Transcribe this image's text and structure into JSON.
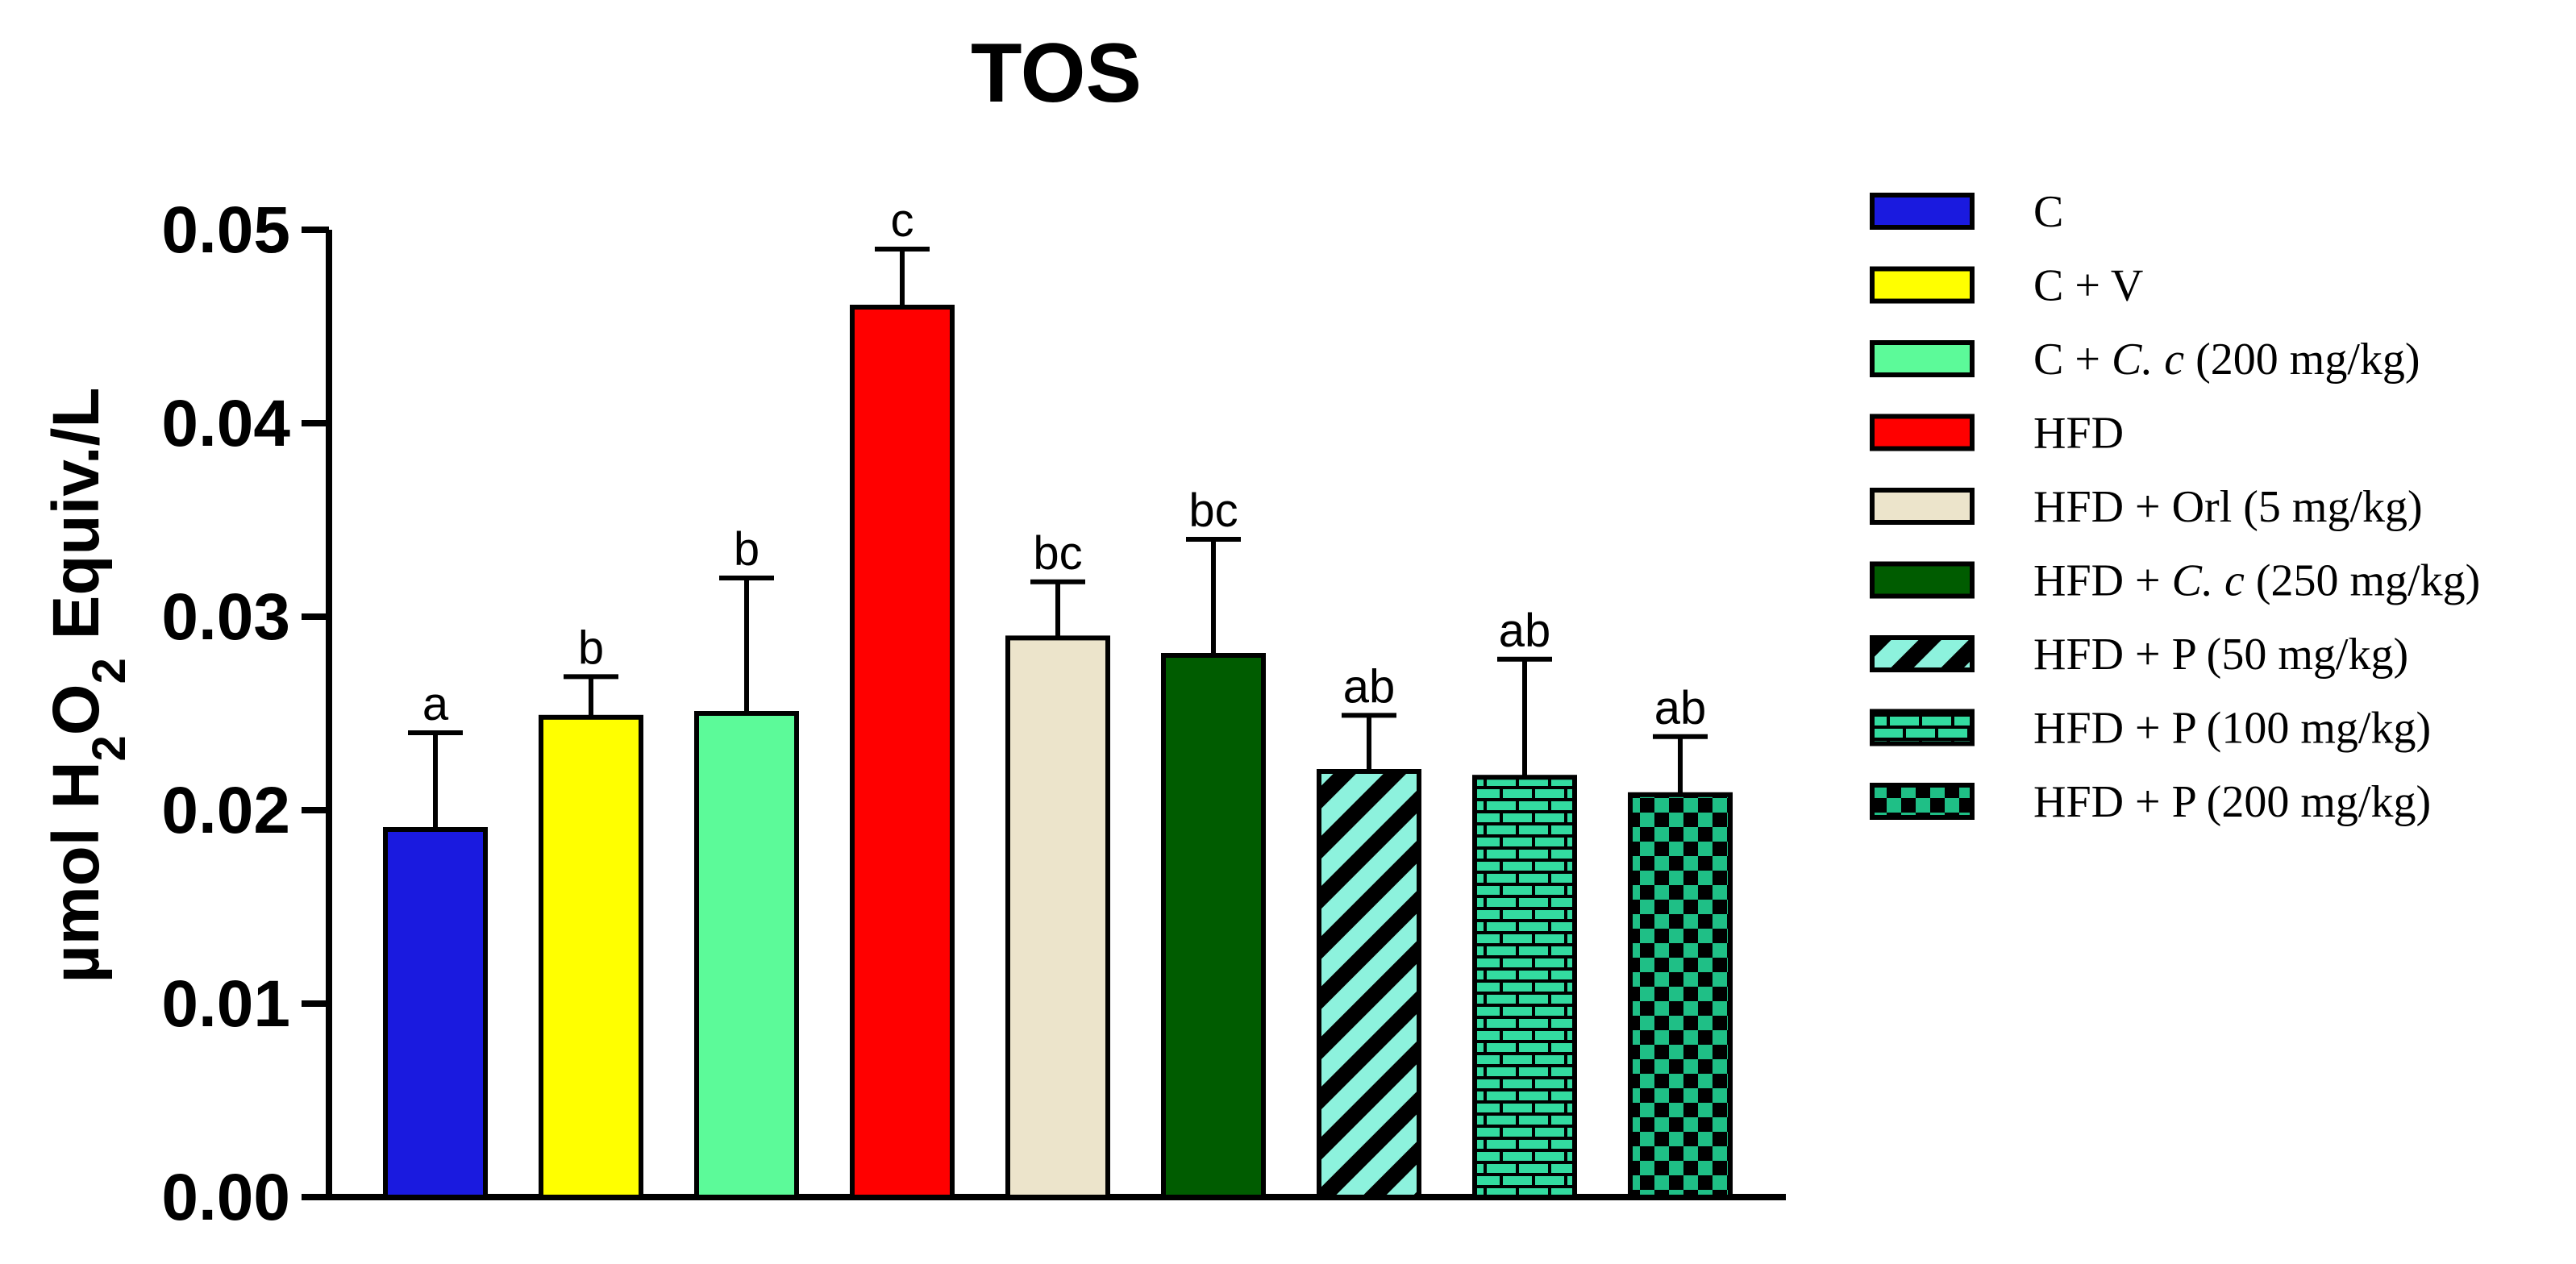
{
  "chart_data": {
    "type": "bar",
    "title": "TOS",
    "xlabel": "",
    "ylabel": {
      "prefix": "µmol H",
      "sub1": "2",
      "mid": "O",
      "sub2": "2",
      "suffix": " Equiv./L"
    },
    "ylim": [
      0,
      0.05
    ],
    "yticks": [
      "0.00",
      "0.01",
      "0.02",
      "0.03",
      "0.04",
      "0.05"
    ],
    "categories": [
      "C",
      "C + V",
      "C + C. c (200 mg/kg)",
      "HFD",
      "HFD + Orl (5 mg/kg)",
      "HFD + C. c (250 mg/kg)",
      "HFD + P (50 mg/kg)",
      "HFD + P (100 mg/kg)",
      "HFD + P (200 mg/kg)"
    ],
    "values": [
      0.019,
      0.0248,
      0.025,
      0.046,
      0.0289,
      0.028,
      0.022,
      0.0217,
      0.0208
    ],
    "errors": [
      0.005,
      0.0021,
      0.007,
      0.003,
      0.0029,
      0.006,
      0.0029,
      0.0061,
      0.003
    ],
    "significance": [
      "a",
      "b",
      "b",
      "c",
      "bc",
      "bc",
      "ab",
      "ab",
      "ab"
    ],
    "colors": [
      "#1a1adf",
      "#ffff00",
      "#5cfa99",
      "#ff0000",
      "#ece4cb",
      "#005c00",
      "#8df2dd",
      "#33dba0",
      "#1fbf86"
    ],
    "patterns": [
      "solid",
      "solid",
      "solid",
      "solid",
      "solid",
      "solid",
      "stripes",
      "bricks",
      "checker"
    ],
    "legend": {
      "position": "right",
      "items": [
        {
          "parts": [
            {
              "t": "C",
              "i": false
            }
          ]
        },
        {
          "parts": [
            {
              "t": "C + V",
              "i": false
            }
          ]
        },
        {
          "parts": [
            {
              "t": "C + ",
              "i": false
            },
            {
              "t": "C. c",
              "i": true
            },
            {
              "t": " (200 mg/kg)",
              "i": false
            }
          ]
        },
        {
          "parts": [
            {
              "t": "HFD",
              "i": false
            }
          ]
        },
        {
          "parts": [
            {
              "t": "HFD + Orl (5 mg/kg)",
              "i": false
            }
          ]
        },
        {
          "parts": [
            {
              "t": "HFD + ",
              "i": false
            },
            {
              "t": "C. c",
              "i": true
            },
            {
              "t": " (250 mg/kg)",
              "i": false
            }
          ]
        },
        {
          "parts": [
            {
              "t": "HFD + P (50 mg/kg)",
              "i": false
            }
          ]
        },
        {
          "parts": [
            {
              "t": "HFD + P (100 mg/kg)",
              "i": false
            }
          ]
        },
        {
          "parts": [
            {
              "t": "HFD + P (200 mg/kg)",
              "i": false
            }
          ]
        }
      ]
    }
  }
}
